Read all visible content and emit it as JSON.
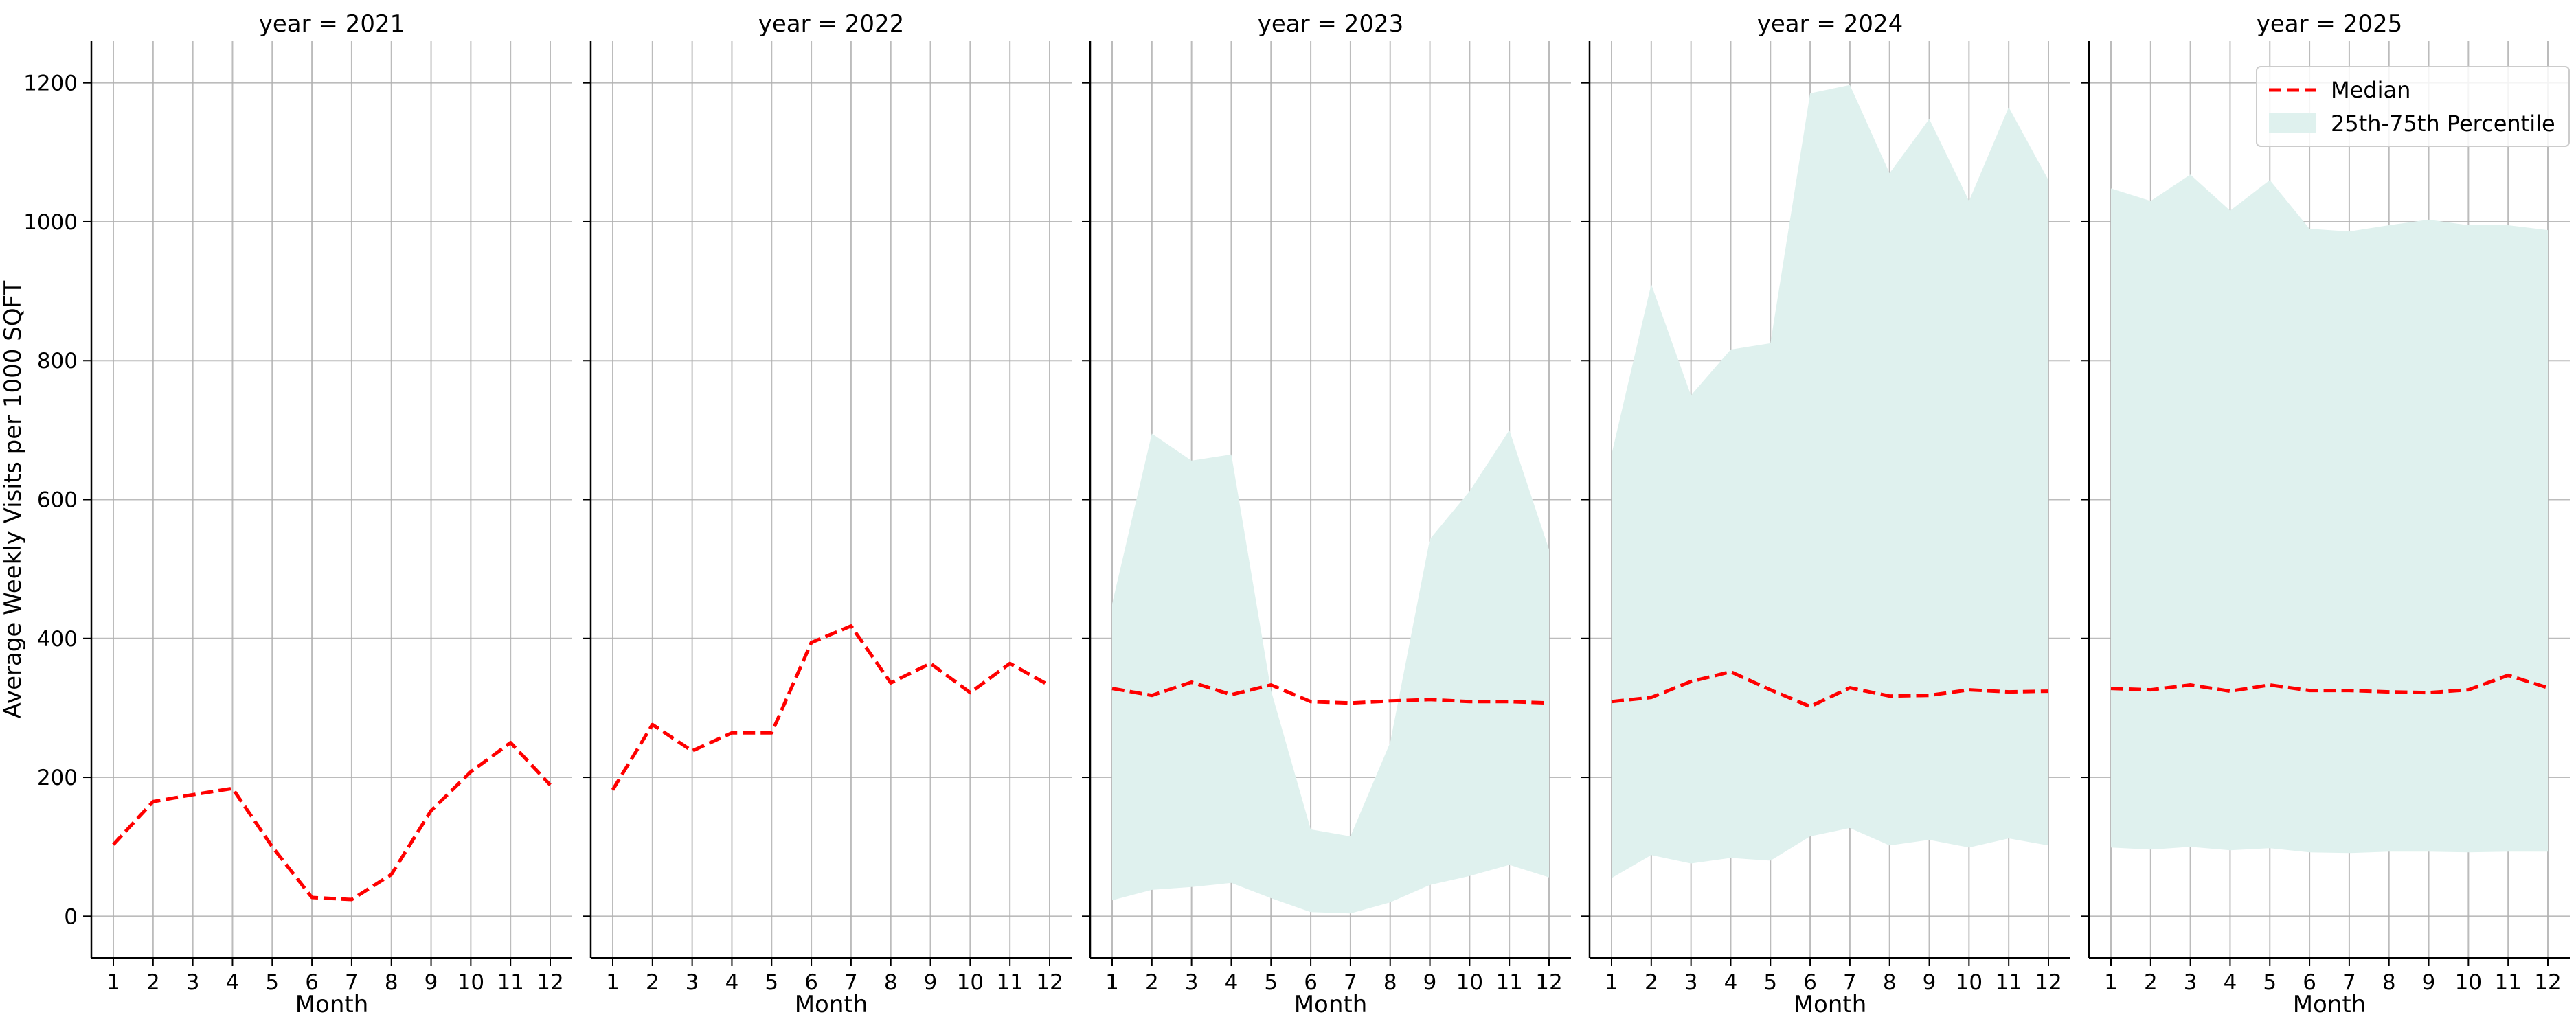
{
  "chart_data": {
    "type": "line",
    "subtype": "faceted line with shaded percentile band",
    "x_label": "Month",
    "y_label": "Average Weekly Visits per 1000 SQFT",
    "x_ticks": [
      1,
      2,
      3,
      4,
      5,
      6,
      7,
      8,
      9,
      10,
      11,
      12
    ],
    "y_ticks": [
      0,
      200,
      400,
      600,
      800,
      1000,
      1200
    ],
    "ylim": [
      -60,
      1260
    ],
    "grid": true,
    "shared_y_axis": true,
    "legend": {
      "placement": "top-right of last panel",
      "entries": [
        {
          "label": "Median",
          "style": "dashed line",
          "color": "#ff0000"
        },
        {
          "label": "25th-75th Percentile",
          "style": "filled band",
          "color": "#dff1ee"
        }
      ]
    },
    "colors": {
      "median": "#ff0000",
      "band": "#dff1ee",
      "grid": "#b0b0b0"
    },
    "panels": [
      {
        "title": "year = 2021",
        "median": [
          103,
          165,
          175,
          184,
          100,
          27,
          24,
          60,
          152,
          208,
          250,
          189
        ],
        "p25": null,
        "p75": null
      },
      {
        "title": "year = 2022",
        "median": [
          182,
          276,
          238,
          264,
          264,
          394,
          418,
          336,
          364,
          322,
          364,
          332
        ],
        "p25": null,
        "p75": null
      },
      {
        "title": "year = 2023",
        "median": [
          328,
          318,
          337,
          319,
          333,
          309,
          307,
          310,
          312,
          309,
          309,
          307
        ],
        "p25": [
          23,
          38,
          42,
          48,
          26,
          6,
          4,
          20,
          45,
          58,
          74,
          56
        ],
        "p75": [
          450,
          695,
          656,
          665,
          325,
          125,
          115,
          250,
          543,
          612,
          700,
          528
        ]
      },
      {
        "title": "year = 2024",
        "median": [
          309,
          315,
          338,
          352,
          326,
          302,
          329,
          317,
          318,
          326,
          323,
          324
        ],
        "p25": [
          55,
          88,
          76,
          84,
          80,
          115,
          127,
          102,
          110,
          99,
          112,
          102
        ],
        "p75": [
          665,
          910,
          750,
          816,
          825,
          1185,
          1197,
          1070,
          1148,
          1030,
          1165,
          1060
        ]
      },
      {
        "title": "year = 2025",
        "median": [
          328,
          326,
          333,
          324,
          333,
          325,
          325,
          323,
          322,
          326,
          347,
          329
        ],
        "p25": [
          99,
          96,
          100,
          95,
          98,
          92,
          91,
          93,
          93,
          92,
          93,
          93
        ],
        "p75": [
          1048,
          1030,
          1068,
          1016,
          1060,
          990,
          986,
          995,
          1003,
          995,
          995,
          988
        ]
      }
    ]
  }
}
